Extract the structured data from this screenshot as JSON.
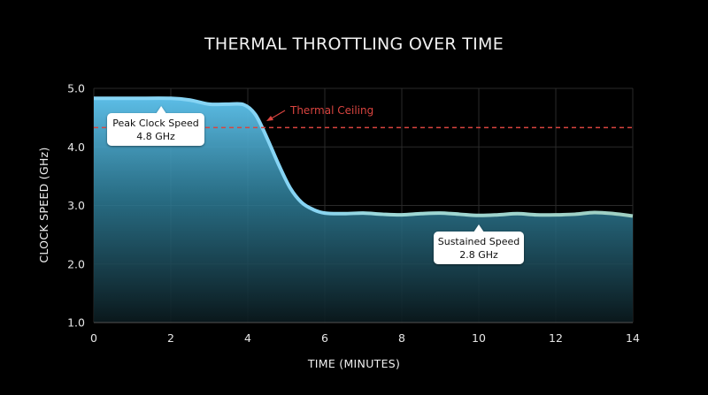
{
  "chart_data": {
    "type": "area",
    "title": "THERMAL THROTTLING OVER TIME",
    "xlabel": "TIME (MINUTES)",
    "ylabel": "CLOCK SPEED (GHz)",
    "xlim": [
      0,
      14
    ],
    "ylim": [
      1.0,
      5.0
    ],
    "x_ticks": [
      "0",
      "2",
      "4",
      "6",
      "8",
      "10",
      "12",
      "14"
    ],
    "y_ticks": [
      "1.0",
      "2.0",
      "3.0",
      "4.0",
      "5.0"
    ],
    "grid": true,
    "series": [
      {
        "x": [
          0,
          1,
          2,
          2.5,
          3,
          3.5,
          3.9,
          4.2,
          4.5,
          4.8,
          5.1,
          5.4,
          5.7,
          6.0,
          6.5,
          7.0,
          7.5,
          8.0,
          8.5,
          9.0,
          9.5,
          10.0,
          10.5,
          11.0,
          11.5,
          12.0,
          12.5,
          13.0,
          13.5,
          14.0
        ],
        "y": [
          4.83,
          4.83,
          4.83,
          4.8,
          4.73,
          4.73,
          4.72,
          4.55,
          4.15,
          3.7,
          3.3,
          3.05,
          2.93,
          2.87,
          2.86,
          2.87,
          2.85,
          2.84,
          2.86,
          2.87,
          2.85,
          2.83,
          2.84,
          2.86,
          2.84,
          2.84,
          2.85,
          2.88,
          2.86,
          2.82
        ]
      }
    ],
    "reference_line": {
      "y": 4.33,
      "label": "Thermal Ceiling",
      "color": "#d9443f"
    },
    "annotations": [
      {
        "label": "Peak Clock Speed",
        "value": "4.8 GHz",
        "x": 1.75,
        "y": 4.83
      },
      {
        "label": "Sustained Speed",
        "value": "2.8 GHz",
        "x": 10.0,
        "y": 2.84
      }
    ],
    "colors": {
      "background": "#000000",
      "area_top": "#5cbde6",
      "area_mid": "#2f7f9a",
      "line_start": "#7fd0f2",
      "line_end": "#8ec9bf",
      "grid": "#2a2a2a"
    }
  }
}
